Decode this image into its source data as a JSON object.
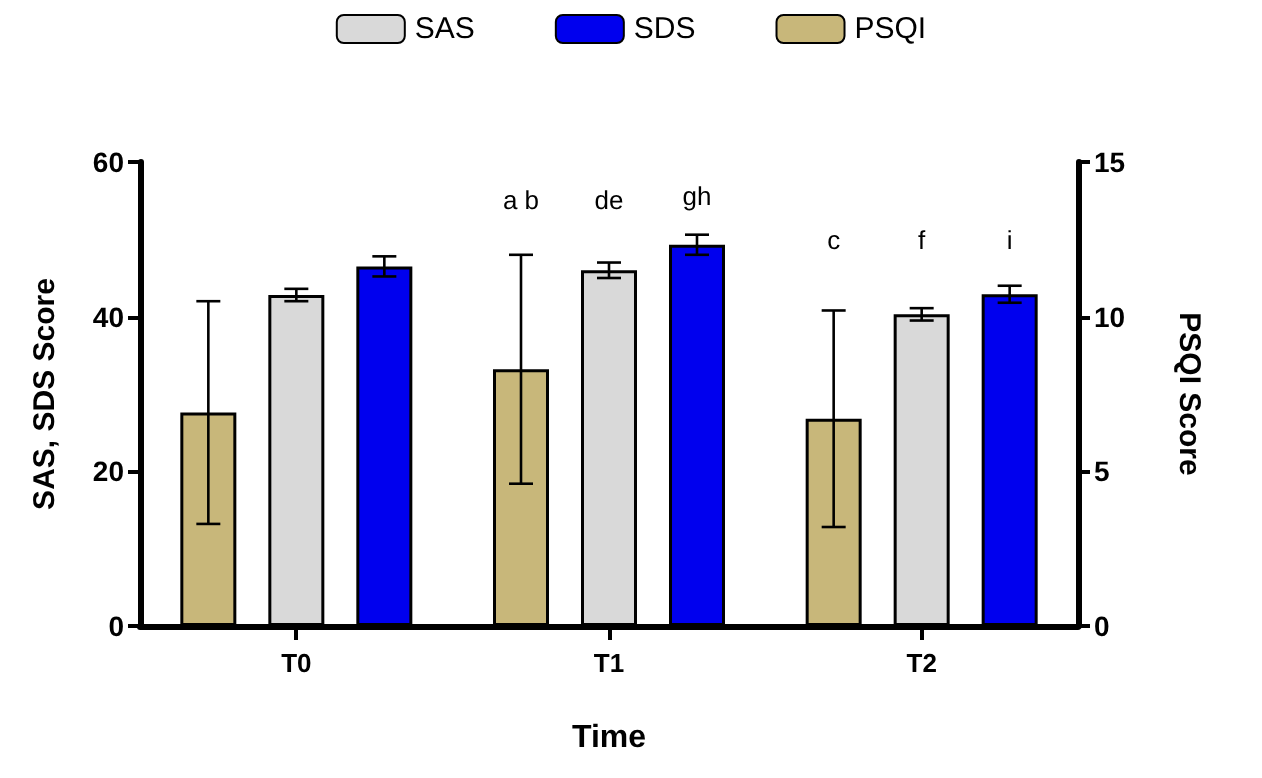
{
  "chart_data": {
    "type": "bar",
    "xlabel": "Time",
    "ylabel": "SAS, SDS Score",
    "y2label": "PSQI Score",
    "categories": [
      "T0",
      "T1",
      "T2"
    ],
    "series": [
      {
        "name": "PSQI",
        "color": "#c8b77a",
        "axis": "y2",
        "values": [
          6.9,
          8.3,
          6.7
        ],
        "errors": [
          3.6,
          3.7,
          3.5
        ]
      },
      {
        "name": "SAS",
        "color": "#d9d9d9",
        "values": [
          42.8,
          46.0,
          40.3
        ],
        "errors": [
          0.8,
          1.0,
          0.8
        ]
      },
      {
        "name": "SDS",
        "color": "#0000ee",
        "values": [
          46.5,
          49.3,
          42.9
        ],
        "errors": [
          1.3,
          1.3,
          1.1
        ]
      }
    ],
    "annotations": [
      "a b",
      "de",
      "gh",
      "c",
      "f",
      "i"
    ],
    "ylim": [
      0,
      60
    ],
    "yticks": [
      0,
      20,
      40,
      60
    ],
    "y2lim": [
      0,
      15
    ],
    "y2ticks": [
      0,
      5,
      10,
      15
    ],
    "grid": false,
    "legend": "top"
  }
}
